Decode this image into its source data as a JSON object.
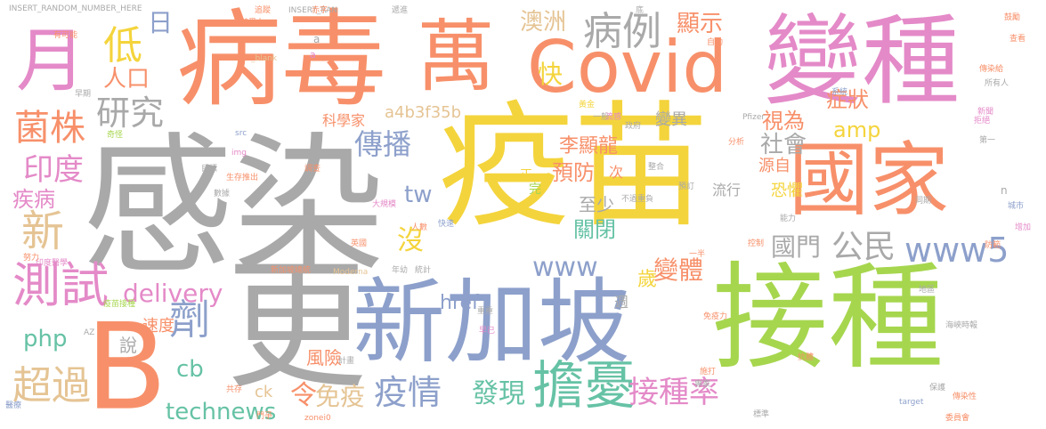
{
  "palette": {
    "gray": "#a9a9a9",
    "yellow": "#f4d43c",
    "salmon": "#f7906a",
    "pink": "#e48ac8",
    "lime": "#a6d64e",
    "blue": "#8da0cb",
    "teal": "#66c2a5",
    "tan": "#e5c494"
  },
  "words": [
    {
      "text": "感染",
      "color": "gray"
    },
    {
      "text": "疫苗",
      "color": "yellow"
    },
    {
      "text": "接種",
      "color": "lime"
    },
    {
      "text": "更",
      "color": "gray"
    },
    {
      "text": "新加坡",
      "color": "blue"
    },
    {
      "text": "病毒",
      "color": "salmon"
    },
    {
      "text": "萬",
      "color": "salmon"
    },
    {
      "text": "變種",
      "color": "pink"
    },
    {
      "text": "Covid",
      "color": "salmon"
    },
    {
      "text": "國家",
      "color": "salmon"
    },
    {
      "text": "B",
      "color": "salmon"
    },
    {
      "text": "月",
      "color": "pink"
    },
    {
      "text": "擔憂",
      "color": "teal"
    },
    {
      "text": "病例",
      "color": "gray"
    },
    {
      "text": "測試",
      "color": "pink"
    },
    {
      "text": "疫情",
      "color": "blue"
    },
    {
      "text": "接種率",
      "color": "pink"
    },
    {
      "text": "劑",
      "color": "blue"
    },
    {
      "text": "研究",
      "color": "gray"
    },
    {
      "text": "菌株",
      "color": "salmon"
    },
    {
      "text": "低",
      "color": "yellow"
    },
    {
      "text": "新",
      "color": "tan"
    },
    {
      "text": "印度",
      "color": "pink"
    },
    {
      "text": "超過",
      "color": "tan"
    },
    {
      "text": "www5",
      "color": "blue"
    },
    {
      "text": "公民",
      "color": "gray"
    },
    {
      "text": "傳播",
      "color": "blue"
    },
    {
      "text": "技術",
      "color": "pink"
    },
    {
      "text": "technews",
      "color": "teal"
    },
    {
      "text": "delivery",
      "color": "pink"
    },
    {
      "text": "www",
      "color": "blue"
    },
    {
      "text": "發現",
      "color": "teal"
    },
    {
      "text": "免疫",
      "color": "tan"
    },
    {
      "text": "令",
      "color": "salmon"
    },
    {
      "text": "變體",
      "color": "salmon"
    },
    {
      "text": "國門",
      "color": "gray"
    },
    {
      "text": "顯示",
      "color": "salmon"
    },
    {
      "text": "澳洲",
      "color": "tan"
    },
    {
      "text": "快",
      "color": "yellow"
    },
    {
      "text": "人口",
      "color": "salmon"
    },
    {
      "text": "日",
      "color": "blue"
    },
    {
      "text": "amp",
      "color": "yellow"
    },
    {
      "text": "症狀",
      "color": "salmon"
    },
    {
      "text": "視為",
      "color": "salmon"
    },
    {
      "text": "社會",
      "color": "gray"
    },
    {
      "text": "李顯龍",
      "color": "salmon"
    },
    {
      "text": "預防",
      "color": "salmon"
    },
    {
      "text": "tw",
      "color": "blue"
    },
    {
      "text": "沒",
      "color": "yellow"
    },
    {
      "text": "至少",
      "color": "gray"
    },
    {
      "text": "關閉",
      "color": "teal"
    },
    {
      "text": "疾病",
      "color": "pink"
    },
    {
      "text": "php",
      "color": "teal"
    },
    {
      "text": "cb",
      "color": "teal"
    },
    {
      "text": "說",
      "color": "gray"
    },
    {
      "text": "風險",
      "color": "salmon"
    },
    {
      "text": "a4b3f35b",
      "color": "tan"
    },
    {
      "text": "歲",
      "color": "yellow"
    },
    {
      "text": "href",
      "color": "blue"
    },
    {
      "text": "科學家",
      "color": "salmon"
    },
    {
      "text": "變異",
      "color": "gray"
    },
    {
      "text": "速度",
      "color": "salmon"
    },
    {
      "text": "ck",
      "color": "tan"
    },
    {
      "text": "恐懼",
      "color": "yellow"
    },
    {
      "text": "源自",
      "color": "salmon"
    },
    {
      "text": "流行",
      "color": "gray"
    },
    {
      "text": "次",
      "color": "salmon"
    },
    {
      "text": "正",
      "color": "yellow"
    },
    {
      "text": "完",
      "color": "lime"
    },
    {
      "text": "週",
      "color": "gray"
    },
    {
      "text": "INSERT_RANDOM_NUMBER_HERE",
      "color": "gray"
    },
    {
      "text": "INSERT_RAN",
      "color": "gray"
    },
    {
      "text": "_blank",
      "color": "tan"
    },
    {
      "text": "img",
      "color": "pink"
    },
    {
      "text": "src",
      "color": "blue"
    },
    {
      "text": "target",
      "color": "blue"
    },
    {
      "text": "Pfizer",
      "color": "gray"
    },
    {
      "text": "Moderna",
      "color": "tan"
    },
    {
      "text": "zonei0",
      "color": "salmon"
    },
    {
      "text": "AZ",
      "color": "gray"
    },
    {
      "text": "a",
      "color": "gray"
    },
    {
      "text": "n",
      "color": "gray"
    },
    {
      "text": "a",
      "color": "pink"
    },
    {
      "text": "競爭力",
      "color": "salmon"
    },
    {
      "text": "追蹤",
      "color": "salmon"
    },
    {
      "text": "赤字",
      "color": "salmon"
    },
    {
      "text": "遞進",
      "color": "gray"
    },
    {
      "text": "底",
      "color": "gray"
    },
    {
      "text": "自動",
      "color": "salmon"
    },
    {
      "text": "新聞",
      "color": "pink"
    },
    {
      "text": "鼓勵",
      "color": "salmon"
    },
    {
      "text": "所有人",
      "color": "gray"
    },
    {
      "text": "城市",
      "color": "blue"
    },
    {
      "text": "增加",
      "color": "pink"
    },
    {
      "text": "印度醫學",
      "color": "pink"
    },
    {
      "text": "英國",
      "color": "salmon"
    },
    {
      "text": "早已",
      "color": "pink"
    },
    {
      "text": "保護",
      "color": "gray"
    },
    {
      "text": "委員會",
      "color": "salmon"
    },
    {
      "text": "醫療",
      "color": "blue"
    },
    {
      "text": "計畫",
      "color": "gray"
    },
    {
      "text": "抗體",
      "color": "salmon"
    },
    {
      "text": "系統",
      "color": "blue"
    },
    {
      "text": "政府",
      "color": "gray"
    },
    {
      "text": "人數",
      "color": "salmon"
    },
    {
      "text": "門爭",
      "color": "salmon"
    },
    {
      "text": "生存",
      "color": "salmon"
    },
    {
      "text": "數據",
      "color": "gray"
    },
    {
      "text": "不過重負",
      "color": "gray"
    },
    {
      "text": "預訂",
      "color": "gray"
    },
    {
      "text": "防範",
      "color": "salmon"
    },
    {
      "text": "能力",
      "color": "gray"
    },
    {
      "text": "整合",
      "color": "gray"
    },
    {
      "text": "分析",
      "color": "salmon"
    },
    {
      "text": "免疫力",
      "color": "salmon"
    },
    {
      "text": "有可能",
      "color": "salmon"
    },
    {
      "text": "重重",
      "color": "gray"
    },
    {
      "text": "黃金",
      "color": "yellow"
    },
    {
      "text": "一般",
      "color": "gray"
    },
    {
      "text": "流感",
      "color": "pink"
    },
    {
      "text": "第一",
      "color": "gray"
    },
    {
      "text": "拒絕",
      "color": "pink"
    },
    {
      "text": "快速",
      "color": "blue"
    },
    {
      "text": "年幼",
      "color": "gray"
    },
    {
      "text": "統計",
      "color": "gray"
    },
    {
      "text": "新加坡總統",
      "color": "salmon"
    },
    {
      "text": "目標",
      "color": "gray"
    },
    {
      "text": "傳染性",
      "color": "salmon"
    },
    {
      "text": "專家",
      "color": "gray"
    },
    {
      "text": "施打",
      "color": "salmon"
    },
    {
      "text": "標準",
      "color": "gray"
    },
    {
      "text": "共存",
      "color": "salmon"
    },
    {
      "text": "一半",
      "color": "salmon"
    },
    {
      "text": "海峽時報",
      "color": "gray"
    },
    {
      "text": "努力",
      "color": "salmon"
    },
    {
      "text": "早期",
      "color": "gray"
    },
    {
      "text": "同期",
      "color": "gray"
    },
    {
      "text": "控制",
      "color": "salmon"
    },
    {
      "text": "奇怪",
      "color": "lime"
    },
    {
      "text": "推出",
      "color": "salmon"
    },
    {
      "text": "大規模",
      "color": "pink"
    },
    {
      "text": "疫苗接種",
      "color": "lime"
    },
    {
      "text": "傳染給",
      "color": "salmon"
    },
    {
      "text": "查看",
      "color": "salmon"
    },
    {
      "text": "調查",
      "color": "salmon"
    },
    {
      "text": "地區",
      "color": "gray"
    }
  ]
}
